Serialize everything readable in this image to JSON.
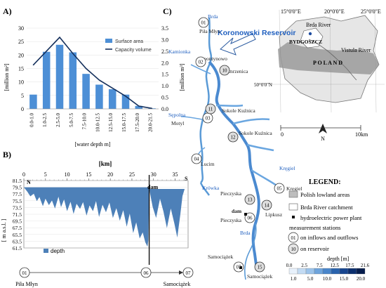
{
  "panel_a": {
    "label": "A)",
    "left_axis_label": "[million m²]",
    "right_axis_label": "[million m³]",
    "xlabel": "[water depth m]",
    "legend": {
      "surface": "Surface area",
      "capacity": "Capacity volume"
    }
  },
  "panel_b": {
    "label": "B)",
    "top_axis_label": "[km]",
    "ylabel": "[ m a.s.l. ]",
    "legend_depth": "depth",
    "dam_label": "dam",
    "north_marker": "N",
    "south_marker": "S",
    "station_left": "01",
    "station_mid": "06",
    "station_right": "07",
    "place_left": "Piła Młyn",
    "place_right": "Samociążek"
  },
  "panel_c": {
    "label": "C)",
    "reservoir_title": "Koronowski Reservoir",
    "inset": {
      "lon_labels": [
        "15°0'0\"E",
        "20°0'0\"E",
        "25°0'0\"E"
      ],
      "lat_label": "50°0'0\"N",
      "brda_river": "Brda River",
      "city": "BYDGOSZCZ",
      "vistula": "Vistula River",
      "country": "P O L A N D"
    },
    "places": [
      {
        "id": "brda_top",
        "text": "Brda"
      },
      {
        "id": "pila",
        "text": "Piła Młyn"
      },
      {
        "id": "kamionka",
        "text": "Kamionka"
      },
      {
        "id": "leontynowo",
        "text": "Leontynowo"
      },
      {
        "id": "zamrzenica",
        "text": "Zamrzenica"
      },
      {
        "id": "sepolna",
        "text": "Sępolna"
      },
      {
        "id": "motyl",
        "text": "Motyl"
      },
      {
        "id": "sokole1",
        "text": "Sokole Kuźnica"
      },
      {
        "id": "sokole2",
        "text": "Sokole Kuźnica"
      },
      {
        "id": "lucim",
        "text": "Lucim"
      },
      {
        "id": "krowka",
        "text": "Krówka"
      },
      {
        "id": "kregiel",
        "text": "Kręgiel"
      },
      {
        "id": "kregiel2",
        "text": "Kręgiel"
      },
      {
        "id": "pieczyska1",
        "text": "Pieczyska"
      },
      {
        "id": "dam",
        "text": "dam"
      },
      {
        "id": "pieczyska2",
        "text": "Pieczyska"
      },
      {
        "id": "lipkusz",
        "text": "Lipkusz"
      },
      {
        "id": "brda_bot",
        "text": "Brda"
      },
      {
        "id": "samociazek",
        "text": "Samociążek"
      },
      {
        "id": "samociazek2",
        "text": "Samociążek"
      }
    ],
    "stations": [
      "01",
      "02",
      "03",
      "04",
      "05",
      "06",
      "07",
      "10",
      "11",
      "12",
      "13",
      "14",
      "15"
    ],
    "scale": {
      "start": "0",
      "end": "10km"
    },
    "north": "N"
  },
  "legend": {
    "title": "LEGEND:",
    "polish_lowland": "Polish lowland areas",
    "catchment": "Brda River catchment",
    "hpp": "hydroelectric power plant",
    "measurement": "measurement stations",
    "inflows_outflows_num": "01",
    "inflows_outflows": "on inflows and outflows",
    "reservoir_num": "10",
    "on_reservoir": "on reservoir",
    "depth_title": "depth [m]",
    "depth_top_ticks": [
      "0.0",
      "2.5",
      "7.5",
      "12.5",
      "17.5",
      "21.6"
    ],
    "depth_bottom_ticks": [
      "1.0",
      "5.0",
      "10.0",
      "15.0",
      "20.0"
    ],
    "depth_colors": [
      "#e8f1fb",
      "#c3dbf3",
      "#9cc3ea",
      "#6ea4dc",
      "#4a86cb",
      "#2a63ad",
      "#17458f",
      "#0c2f6e",
      "#061d4d"
    ]
  },
  "chart_data": [
    {
      "type": "bar",
      "title": "",
      "categories": [
        "0.0-1.0",
        "1.0-2.5",
        "2.5-5.0",
        "5.0-7.5",
        "7.5-10.0",
        "10.0-12.5",
        "12.5-15.0",
        "15.0-17.5",
        "17.5-20.0",
        "20.0-21.5"
      ],
      "series": [
        {
          "name": "Surface area",
          "kind": "bar",
          "axis": "left",
          "color": "#4d8fd6",
          "values": [
            5.3,
            21.2,
            23.8,
            21.0,
            13.0,
            9.0,
            7.3,
            5.3,
            1.1,
            0.2
          ]
        },
        {
          "name": "Capacity volume",
          "kind": "line",
          "axis": "right",
          "color": "#15305c",
          "values": [
            1.9,
            2.5,
            3.1,
            2.4,
            1.75,
            1.25,
            0.9,
            0.55,
            0.12,
            0.02
          ]
        }
      ],
      "xlabel": "[water depth m]",
      "ylabel": "[million m²]",
      "y2label": "[million m³]",
      "ylim": [
        0,
        30
      ],
      "y2lim": [
        0,
        3.5
      ],
      "yticks": [
        0,
        5,
        10,
        15,
        20,
        25,
        30
      ],
      "y2ticks": [
        "0.0",
        "0.5",
        "1.0",
        "1.5",
        "2.0",
        "2.5",
        "3.0",
        "3.5"
      ]
    },
    {
      "type": "area",
      "title": "",
      "series": [
        {
          "name": "depth",
          "color": "#4d80b8",
          "surface_left": 79.5,
          "surface_right": 79.0,
          "x": [
            0,
            0.8,
            1.5,
            2.3,
            3,
            3.6,
            4.4,
            5,
            5.8,
            6.5,
            7.2,
            8,
            8.6,
            9.3,
            10,
            10.8,
            11.5,
            12.2,
            13,
            13.7,
            14.5,
            15.2,
            16,
            16.7,
            17.4,
            18.2,
            19,
            19.8,
            20.6,
            21.4,
            22.2,
            23,
            23.8,
            24.5,
            25.3,
            26,
            26.8,
            27.5,
            28.1,
            28.6,
            28.8,
            29,
            29.8,
            30.6,
            31.5,
            32.3,
            33.1,
            34,
            34.8,
            35.5,
            36.2,
            36.7,
            37.2
          ],
          "y": [
            79.5,
            78.2,
            76.8,
            77.6,
            75.4,
            76.6,
            73.9,
            76.1,
            74.2,
            75.6,
            73.2,
            76.7,
            73.6,
            75.9,
            72.4,
            75.2,
            71.6,
            74.6,
            73.1,
            75.1,
            71.1,
            74.1,
            72.4,
            75.4,
            70.7,
            74.3,
            72.1,
            75.0,
            70.4,
            73.3,
            69.6,
            72.7,
            67.8,
            71.7,
            65.9,
            69.1,
            64.3,
            66.1,
            63.2,
            61.9,
            63.8,
            79.0,
            73.7,
            70.4,
            76.1,
            72.3,
            67.4,
            73.2,
            68.9,
            64.6,
            71.4,
            76.9,
            79.0
          ]
        }
      ],
      "xlim": [
        0,
        38
      ],
      "ylim": [
        61.5,
        81.5
      ],
      "xticks": [
        0,
        5,
        10,
        15,
        20,
        25,
        30,
        35
      ],
      "yticks": [
        "61.5",
        "63.5",
        "65.5",
        "67.5",
        "69.5",
        "71.5",
        "73.5",
        "75.5",
        "77.5",
        "79.5",
        "81.5"
      ],
      "dam_km": 29.0,
      "xlabel": "[km]",
      "ylabel": "[ m a.s.l. ]"
    }
  ]
}
